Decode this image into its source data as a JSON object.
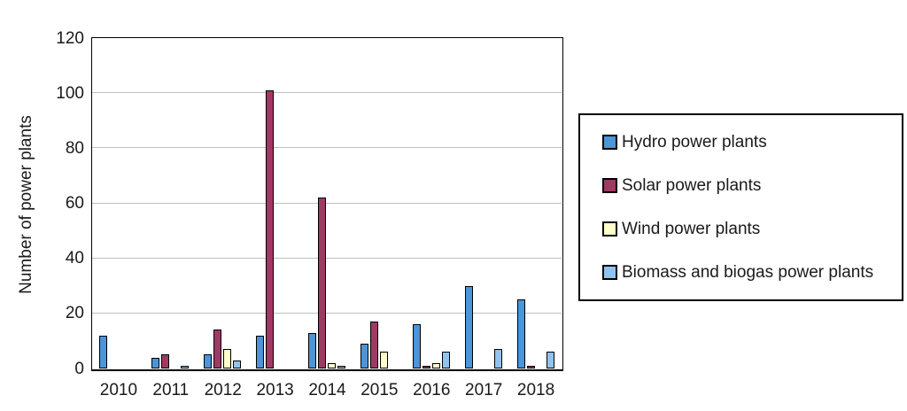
{
  "chart_data": {
    "type": "bar",
    "title": "",
    "xlabel": "",
    "ylabel": "Number of power plants",
    "ylim": [
      0,
      120
    ],
    "yticks": [
      0,
      20,
      40,
      60,
      80,
      100,
      120
    ],
    "grid": true,
    "legend_position": "right",
    "categories": [
      "2010",
      "2011",
      "2012",
      "2013",
      "2014",
      "2015",
      "2016",
      "2017",
      "2018"
    ],
    "series": [
      {
        "name": "Hydro power plants",
        "color": "#4D94D8",
        "values": [
          12,
          4,
          5,
          12,
          13,
          9,
          16,
          30,
          25
        ]
      },
      {
        "name": "Solar power plants",
        "color": "#9E3A63",
        "values": [
          0,
          5,
          14,
          101,
          62,
          17,
          1,
          0,
          1
        ]
      },
      {
        "name": "Wind power plants",
        "color": "#FFFFCC",
        "values": [
          0,
          0,
          7,
          0,
          2,
          6,
          2,
          0,
          0
        ]
      },
      {
        "name": "Biomass and biogas power plants",
        "color": "#92C3EE",
        "values": [
          0,
          1,
          3,
          0,
          1,
          0,
          6,
          7,
          6
        ]
      }
    ],
    "axis_color": "#000000",
    "gridline_color": "#BFBFBF"
  }
}
